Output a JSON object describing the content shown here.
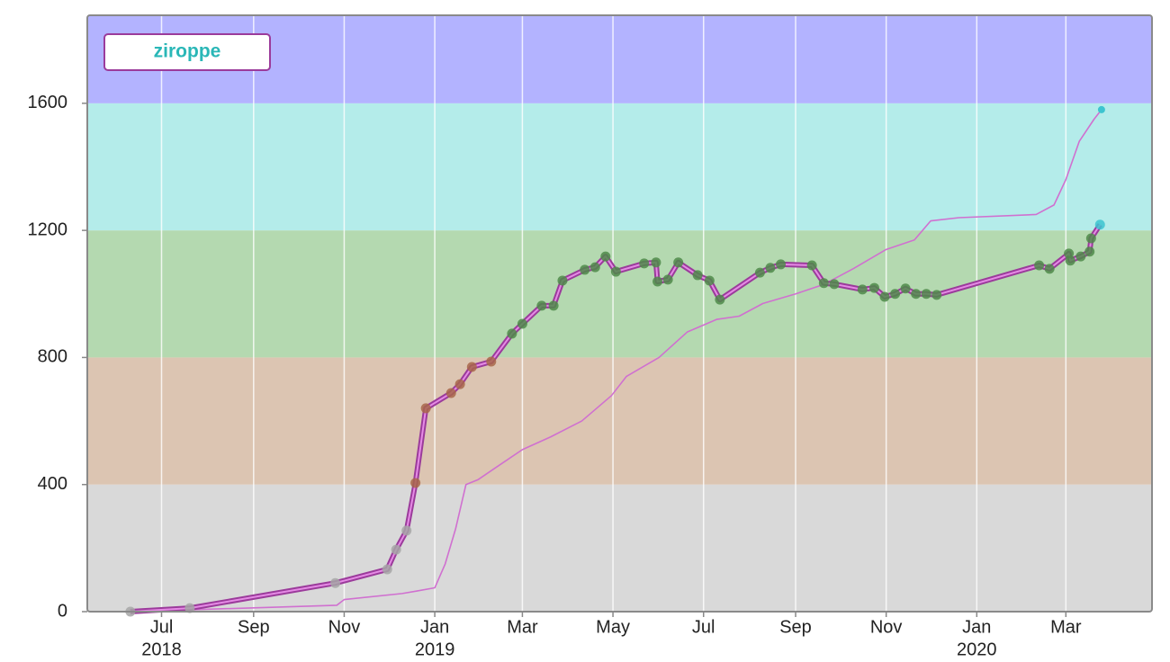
{
  "chart_data": {
    "type": "line",
    "xlim": [
      "2018-05-12",
      "2020-04-28"
    ],
    "ylim": [
      0,
      1877
    ],
    "yticks": [
      0,
      400,
      800,
      1200,
      1600
    ],
    "xticks": [
      {
        "value": "2018-07-01",
        "label": "Jul"
      },
      {
        "value": "2018-09-01",
        "label": "Sep"
      },
      {
        "value": "2018-11-01",
        "label": "Nov"
      },
      {
        "value": "2019-01-01",
        "label": "Jan"
      },
      {
        "value": "2019-03-01",
        "label": "Mar"
      },
      {
        "value": "2019-05-01",
        "label": "May"
      },
      {
        "value": "2019-07-01",
        "label": "Jul"
      },
      {
        "value": "2019-09-01",
        "label": "Sep"
      },
      {
        "value": "2019-11-01",
        "label": "Nov"
      },
      {
        "value": "2020-01-01",
        "label": "Jan"
      },
      {
        "value": "2020-03-01",
        "label": "Mar"
      }
    ],
    "year_labels": [
      {
        "value": "2018-07-01",
        "label": "2018"
      },
      {
        "value": "2019-01-01",
        "label": "2019"
      },
      {
        "value": "2020-01-01",
        "label": "2020"
      }
    ],
    "grid": true,
    "legend": "top-left",
    "bands": [
      {
        "from": 0,
        "color": "#d9d9d9",
        "marker": "#a6a6a6"
      },
      {
        "from": 400,
        "color": "#dcc5b2",
        "marker": "#a8664a"
      },
      {
        "from": 800,
        "color": "#b4d9b0",
        "marker": "#4f8a4a"
      },
      {
        "from": 1200,
        "color": "#b4ecea",
        "marker": "#3cc4d0"
      },
      {
        "from": 1600,
        "color": "#b3b3ff",
        "marker": "#6a6ad8"
      }
    ],
    "series": [
      {
        "name": "ziroppe",
        "color": "#9b3b9b",
        "markers": true,
        "x": [
          "2018-06-10",
          "2018-07-20",
          "2018-10-26",
          "2018-11-30",
          "2018-12-06",
          "2018-12-13",
          "2018-12-19",
          "2018-12-26",
          "2019-01-12",
          "2019-01-18",
          "2019-01-26",
          "2019-02-08",
          "2019-02-22",
          "2019-03-01",
          "2019-03-14",
          "2019-03-22",
          "2019-03-28",
          "2019-04-12",
          "2019-04-19",
          "2019-04-26",
          "2019-05-03",
          "2019-05-22",
          "2019-05-30",
          "2019-05-31",
          "2019-06-07",
          "2019-06-14",
          "2019-06-27",
          "2019-07-05",
          "2019-07-12",
          "2019-08-08",
          "2019-08-15",
          "2019-08-22",
          "2019-09-12",
          "2019-09-20",
          "2019-09-27",
          "2019-10-16",
          "2019-10-24",
          "2019-10-31",
          "2019-11-07",
          "2019-11-14",
          "2019-11-21",
          "2019-11-28",
          "2019-12-05",
          "2020-02-12",
          "2020-02-19",
          "2020-03-03",
          "2020-03-04",
          "2020-03-11",
          "2020-03-17",
          "2020-03-18",
          "2020-03-24"
        ],
        "values": [
          0,
          11,
          90,
          133,
          195,
          255,
          405,
          640,
          688,
          716,
          770,
          787,
          875,
          906,
          963,
          963,
          1042,
          1076,
          1084,
          1118,
          1070,
          1096,
          1099,
          1039,
          1045,
          1099,
          1059,
          1042,
          982,
          1067,
          1082,
          1093,
          1090,
          1034,
          1031,
          1014,
          1019,
          991,
          1000,
          1017,
          1000,
          1000,
          997,
          1090,
          1079,
          1127,
          1105,
          1118,
          1133,
          1175,
          1218
        ]
      },
      {
        "color": "#d070d0",
        "markers": false,
        "x": [
          "2018-06-10",
          "2018-10-27",
          "2018-11-01",
          "2018-12-10",
          "2018-12-20",
          "2019-01-01",
          "2019-01-08",
          "2019-01-15",
          "2019-01-22",
          "2019-01-30",
          "2019-02-10",
          "2019-03-01",
          "2019-03-20",
          "2019-04-10",
          "2019-04-30",
          "2019-05-10",
          "2019-06-01",
          "2019-06-20",
          "2019-07-10",
          "2019-07-25",
          "2019-08-10",
          "2019-09-01",
          "2019-09-20",
          "2019-10-10",
          "2019-11-01",
          "2019-11-20",
          "2019-12-01",
          "2019-12-20",
          "2020-02-10",
          "2020-02-22",
          "2020-03-01",
          "2020-03-10",
          "2020-03-20",
          "2020-03-25"
        ],
        "values": [
          0,
          20,
          38,
          57,
          65,
          75,
          150,
          260,
          400,
          415,
          450,
          510,
          550,
          600,
          680,
          740,
          800,
          880,
          920,
          930,
          970,
          1000,
          1030,
          1080,
          1140,
          1170,
          1230,
          1240,
          1250,
          1280,
          1360,
          1480,
          1550,
          1580
        ]
      }
    ]
  }
}
